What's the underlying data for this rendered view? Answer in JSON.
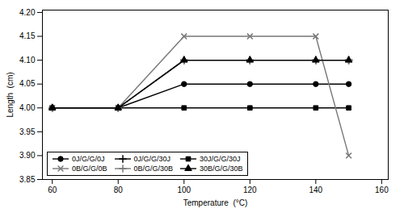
{
  "chart_data": {
    "type": "line",
    "x": [
      60,
      80,
      100,
      120,
      140,
      150
    ],
    "series": [
      {
        "name": "0J/G/G/0J",
        "color": "#000000",
        "marker": "circle",
        "values": [
          4.0,
          4.0,
          4.05,
          4.05,
          4.05,
          4.05
        ]
      },
      {
        "name": "0J/G/G/30J",
        "color": "#000000",
        "marker": "plus",
        "values": [
          4.0,
          4.0,
          4.1,
          4.1,
          4.1,
          4.1
        ]
      },
      {
        "name": "30J/G/G/30J",
        "color": "#000000",
        "marker": "square",
        "values": [
          4.0,
          4.0,
          4.0,
          4.0,
          4.0,
          4.0
        ]
      },
      {
        "name": "0B/G/G/0B",
        "color": "#777777",
        "marker": "times",
        "values": [
          4.0,
          4.0,
          4.15,
          4.15,
          4.15,
          3.9
        ]
      },
      {
        "name": "0B/G/G/30B",
        "color": "#777777",
        "marker": "plus",
        "values": [
          4.0,
          4.0,
          4.1,
          4.1,
          4.1,
          4.1
        ]
      },
      {
        "name": "30B/G/G/30B",
        "color": "#000000",
        "marker": "triangle",
        "values": [
          4.0,
          4.0,
          4.1,
          4.1,
          4.1,
          4.1
        ]
      }
    ],
    "xlim": [
      57,
      162
    ],
    "ylim": [
      3.85,
      4.205
    ],
    "xticks": [
      60,
      80,
      100,
      120,
      140,
      160
    ],
    "yticks": [
      3.85,
      {
        "value": 3.9,
        "label": "3.90"
      },
      3.95,
      {
        "value": 4,
        "label": "4.00"
      },
      4.05,
      {
        "value": 4.1,
        "label": "4.10"
      },
      4.15,
      {
        "value": 4.2,
        "label": "4.20"
      }
    ],
    "xlabel": "Temperature  (°C)",
    "ylabel": "Length  (cm)",
    "legend": "lower left",
    "grid": false
  }
}
